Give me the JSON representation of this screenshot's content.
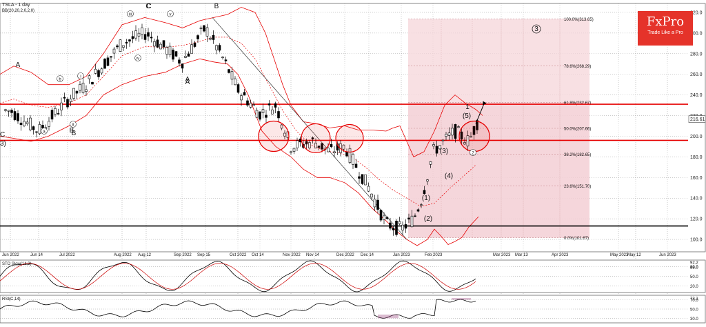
{
  "chart_data": [
    {
      "type": "candlestick",
      "title": "TSLA - 1 day",
      "indicator_label": "BB(20,20,2,0,2,0)",
      "x_ticks": [
        "Jun 2022",
        "Jun 14",
        "Jul 2022",
        "Aug 2022",
        "Aug 12",
        "Sep 2022",
        "Sep 15",
        "Oct 2022",
        "Oct 14",
        "Nov 2022",
        "Nov 14",
        "Dec 2022",
        "Dec 14",
        "Jan 2023",
        "Feb 2023",
        "Mar 2023",
        "Mar 13",
        "Apr 2023",
        "May 2023",
        "May 12",
        "Jun 2023"
      ],
      "y_ticks": [
        100,
        120,
        140,
        160,
        180,
        200,
        220,
        240,
        260,
        280,
        300,
        320
      ],
      "ylim": [
        88,
        328
      ],
      "last_price": "216.61",
      "levels": [
        {
          "label": "100.0%(313.65)",
          "value": 313.65
        },
        {
          "label": "78.6%(268.29)",
          "value": 268.29
        },
        {
          "label": "61.8%(232.67)",
          "value": 232.67
        },
        {
          "label": "50.0%(207.66)",
          "value": 207.66
        },
        {
          "label": "38.2%(182.65)",
          "value": 182.65
        },
        {
          "label": "23.6%(151.70)",
          "value": 151.7
        },
        {
          "label": "0.0%(101.67)",
          "value": 101.67
        }
      ],
      "horizontal_lines": [
        {
          "value": 231,
          "color": "#e60000"
        },
        {
          "value": 196,
          "color": "#e60000"
        },
        {
          "value": 113,
          "color": "#000000"
        }
      ],
      "wave_labels": [
        "A",
        "B",
        "C",
        "A",
        "B",
        "C",
        "B",
        "A",
        "i",
        "ii",
        "iii",
        "iv",
        "v",
        "a",
        "b",
        "c",
        "3",
        "(1)",
        "(2)",
        "(3)",
        "(4)",
        "(5)",
        "1",
        "2",
        "3"
      ],
      "price_path": [
        [
          "Jun 2022",
          225
        ],
        [
          "Jun 14",
          205
        ],
        [
          "Jul 2022",
          235
        ],
        [
          "Jul 20",
          250
        ],
        [
          "Aug 2022",
          290
        ],
        [
          "Aug 12",
          300
        ],
        [
          "Aug 25",
          285
        ],
        [
          "Sep 2022",
          272
        ],
        [
          "Sep 15",
          305
        ],
        [
          "Sep 25",
          280
        ],
        [
          "Oct 2022",
          245
        ],
        [
          "Oct 14",
          222
        ],
        [
          "Oct 25",
          230
        ],
        [
          "Nov 2022",
          190
        ],
        [
          "Nov 14",
          195
        ],
        [
          "Nov 25",
          185
        ],
        [
          "Dec 2022",
          190
        ],
        [
          "Dec 14",
          150
        ],
        [
          "Dec 28",
          115
        ],
        [
          "Jan 2023",
          110
        ],
        [
          "Jan 10",
          120
        ],
        [
          "Jan 20",
          140
        ],
        [
          "Feb 2023",
          185
        ],
        [
          "Feb 8",
          205
        ],
        [
          "Feb 14",
          195
        ],
        [
          "Feb 17",
          216
        ]
      ]
    },
    {
      "type": "line",
      "title": "STO Slow(14,3)",
      "y_ticks": [
        "20.0",
        "50.0",
        "80.0"
      ],
      "last_values": [
        "92.2",
        "88.0"
      ],
      "ylim": [
        0,
        100
      ]
    },
    {
      "type": "line",
      "title": "RSI(C,14)",
      "y_ticks": [
        "30.0",
        "50.0",
        "70.0"
      ],
      "last_value": "73.1",
      "ylim": [
        20,
        80
      ]
    }
  ],
  "logo": {
    "brand": "FxPro",
    "tagline": "Trade Like a Pro"
  },
  "colors": {
    "bb": "#e60000",
    "fib_fill": "#f6d6da",
    "candle_up": "#ffffff",
    "candle_down": "#000000",
    "panel_bg": "#ffffff",
    "grid": "#9a9a9a"
  }
}
